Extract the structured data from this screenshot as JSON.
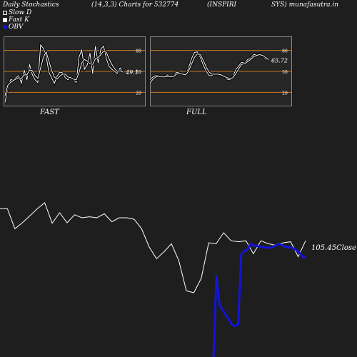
{
  "header": {
    "left": "Daily Stochastics",
    "params": "(14,3,3) Charts for 532774",
    "name1": "(INSPIRI",
    "name2": "SYS) munafasutra.in"
  },
  "legend": [
    {
      "label": "Slow  D",
      "swatch": "#ffffff",
      "style": "outline"
    },
    {
      "label": "Fast K",
      "swatch": "#ffffff",
      "style": "filled"
    },
    {
      "label": "OBV",
      "swatch": "#1414d8",
      "style": "circle"
    }
  ],
  "colors": {
    "background": "#1e1e1e",
    "panel": "#262626",
    "level_lines": "#c8781e",
    "line": "#ffffff",
    "obv": "#1414d8"
  },
  "chart_data": [
    {
      "type": "line",
      "title": "FAST",
      "ylim": [
        0,
        100
      ],
      "yticks": [
        20,
        50,
        80
      ],
      "levels": [
        20,
        50,
        80
      ],
      "last_value_label": "49.1",
      "series": [
        {
          "name": "Fast K",
          "values": [
            6,
            25,
            38,
            38,
            41,
            44,
            33,
            52,
            38,
            60,
            45,
            38,
            34,
            88,
            83,
            72,
            49,
            41,
            33,
            43,
            49,
            48,
            41,
            38,
            43,
            38,
            34,
            70,
            81,
            53,
            59,
            76,
            47,
            86,
            62,
            82,
            86,
            68,
            57,
            53,
            50,
            47,
            55,
            49
          ]
        },
        {
          "name": "Slow  D",
          "values": [
            15,
            30,
            34,
            37,
            39,
            41,
            40,
            45,
            45,
            52,
            51,
            44,
            40,
            55,
            70,
            78,
            65,
            52,
            42,
            39,
            43,
            46,
            46,
            42,
            41,
            39,
            38,
            48,
            62,
            67,
            65,
            61,
            60,
            68,
            70,
            74,
            79,
            77,
            68,
            60,
            54,
            50,
            51,
            49
          ]
        }
      ]
    },
    {
      "type": "line",
      "title": "FULL",
      "ylim": [
        0,
        100
      ],
      "yticks": [
        20,
        50,
        80
      ],
      "levels": [
        20,
        50,
        80
      ],
      "last_value_label": "65.72",
      "series": [
        {
          "name": "Fast K",
          "values": [
            38,
            42,
            44,
            44,
            42,
            43,
            45,
            41,
            44,
            49,
            48,
            46,
            45,
            54,
            68,
            77,
            78,
            70,
            59,
            50,
            44,
            44,
            47,
            46,
            44,
            43,
            39,
            38,
            43,
            53,
            58,
            63,
            62,
            67,
            69,
            74,
            74,
            75,
            72,
            68,
            66
          ]
        },
        {
          "name": "Slow  D",
          "values": [
            33,
            39,
            42,
            43,
            42,
            42,
            43,
            42,
            43,
            46,
            47,
            46,
            45,
            50,
            60,
            70,
            75,
            74,
            66,
            56,
            49,
            46,
            46,
            46,
            45,
            43,
            41,
            40,
            41,
            47,
            54,
            60,
            61,
            64,
            67,
            71,
            73,
            74,
            73,
            70,
            67
          ]
        }
      ]
    },
    {
      "type": "line",
      "title": "",
      "last_value_label": "105.45",
      "last_value_suffix": "Close",
      "series": [
        {
          "name": "Close",
          "values": [
            168,
            168,
            128,
            140,
            154,
            168,
            180,
            139,
            160,
            140,
            156,
            150,
            152,
            150,
            158,
            142,
            150,
            150,
            147,
            128,
            92,
            68,
            82,
            98,
            64,
            4,
            0,
            29,
            100,
            98,
            120,
            104,
            102,
            104,
            78,
            104,
            98,
            95,
            100,
            102,
            72,
            104
          ]
        },
        {
          "name": "OBV",
          "values": [
            -20,
            -20,
            -20,
            -20,
            -20,
            -20,
            -20,
            -20,
            -20,
            -20,
            -20,
            -20,
            -20,
            -20,
            -20,
            -20,
            -20,
            -20,
            -20,
            -20,
            -20,
            70,
            40,
            35,
            30,
            25,
            20,
            18,
            20,
            93,
            97,
            98,
            104,
            102,
            102,
            101,
            101,
            100,
            100,
            101,
            102,
            104,
            103,
            101,
            101,
            100,
            99,
            97,
            94,
            90,
            90
          ]
        }
      ]
    }
  ]
}
